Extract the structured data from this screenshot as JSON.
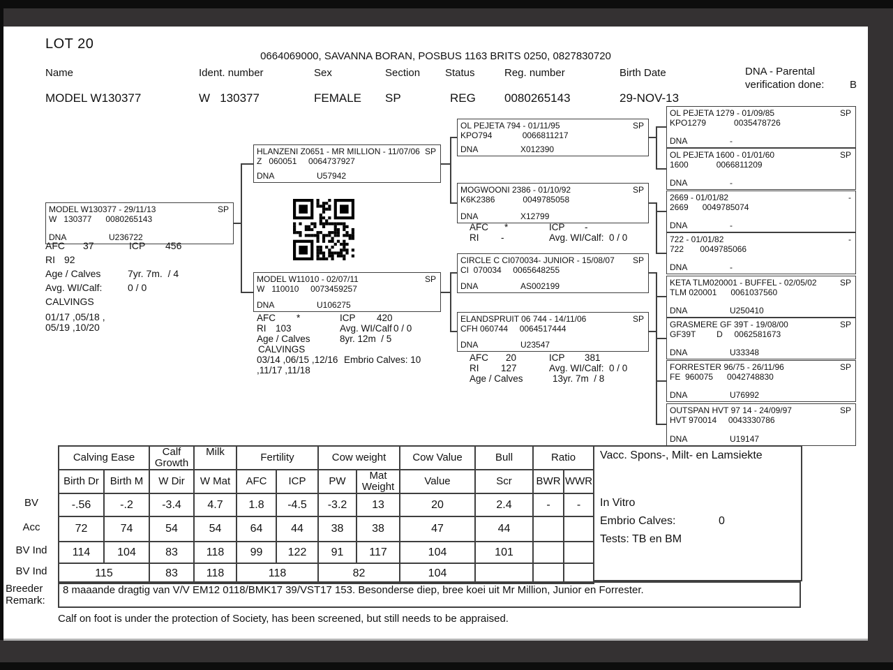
{
  "header": {
    "lot": "LOT 20",
    "contact_line": "0664069000, SAVANNA BORAN, POSBUS 1163 BRITS 0250, 0827830720",
    "fields": [
      {
        "label": "Name",
        "value": "MODEL W130377"
      },
      {
        "label": "Ident. number",
        "value": "W   130377"
      },
      {
        "label": "Sex",
        "value": "FEMALE"
      },
      {
        "label": "Section",
        "value": "SP"
      },
      {
        "label": "Status",
        "value": "REG"
      },
      {
        "label": "Reg. number",
        "value": "0080265143"
      },
      {
        "label": "Birth Date",
        "value": "29-NOV-13"
      }
    ],
    "dna_verification_label1": "DNA - Parental",
    "dna_verification_label2": "verification done:",
    "dna_verification_value": "B"
  },
  "pedigree": {
    "dna_label": "DNA",
    "boxes": [
      {
        "name_line": "MODEL W130377 - 29/11/13",
        "section": "SP",
        "id_line": "W   130377      0080265143",
        "dna_value": "U236722"
      },
      {
        "name_line": "HLANZENI Z0651 - MR MILLION - 11/07/06",
        "section": "SP",
        "id_line": "Z   060051     0064737927",
        "dna_value": "U57942"
      },
      {
        "name_line": "MODEL W11010 - 02/07/11",
        "section": "SP",
        "id_line": "W   110010     0073459257",
        "dna_value": "U106275"
      },
      {
        "name_line": "OL PEJETA 794 - 01/11/95",
        "section": "SP",
        "id_line": "KPO794             0066811217",
        "dna_value": "X012390"
      },
      {
        "name_line": "MOGWOONI 2386 - 01/10/92",
        "section": "SP",
        "id_line": "K6K2386            0049785058",
        "dna_value": "X12799"
      },
      {
        "name_line": "CIRCLE C CI070034- JUNIOR - 15/08/07",
        "section": "SP",
        "id_line": "CI  070034     0065648255",
        "dna_value": "AS002199"
      },
      {
        "name_line": "ELANDSPRUIT 06 744 - 14/11/06",
        "section": "SP",
        "id_line": "CFH 060744     0064517444",
        "dna_value": "U23547"
      },
      {
        "name_line": "OL PEJETA 1279 - 01/09/85",
        "section": "SP",
        "id_line": "KPO1279            0035478726",
        "dna_value": "-"
      },
      {
        "name_line": "OL PEJETA 1600 - 01/01/60",
        "section": "SP",
        "id_line": "1600            0066811209",
        "dna_value": "-"
      },
      {
        "name_line": "2669 - 01/01/82",
        "section": "-",
        "id_line": "2669      0049785074",
        "dna_value": "-"
      },
      {
        "name_line": "722 - 01/01/82",
        "section": "-",
        "id_line": "722       0049785066",
        "dna_value": "-"
      },
      {
        "name_line": "KETA TLM020001 - BUFFEL - 02/05/02",
        "section": "SP",
        "id_line": "TLM 020001      0061037560",
        "dna_value": "U250410"
      },
      {
        "name_line": "GRASMERE GF 39T - 19/08/00",
        "section": "SP",
        "id_line": "GF39T         D     0062581673",
        "dna_value": "U33348"
      },
      {
        "name_line": "FORRESTER 96/75 - 26/11/96",
        "section": "SP",
        "id_line": "FE  960075      0042748830",
        "dna_value": "U76992"
      },
      {
        "name_line": "OUTSPAN HVT 97 14 - 24/09/97",
        "section": "SP",
        "id_line": "HVT 970014     0043330786",
        "dna_value": "U19147"
      }
    ],
    "stat_labels": {
      "afc": "AFC",
      "icp": "ICP",
      "ri": "RI",
      "age_calves": "Age / Calves",
      "avg_wi": "Avg. WI/Calf:",
      "avg_wi_nocolon": "Avg. WI/Calf",
      "calvings": "CALVINGS",
      "star": "*",
      "dash": "-"
    },
    "subject_stats": {
      "afc": "37",
      "icp": "456",
      "ri": "92",
      "age_calves": "7yr. 7m.  / 4",
      "avg_wi": "0 / 0",
      "calvings_line1": "01/17 ,05/18 ,",
      "calvings_line2": "05/19 ,10/20"
    },
    "dam_stats": {
      "afc": "*",
      "icp": "420",
      "ri": "103",
      "avg_wi": "0 / 0",
      "age_calves": "8yr. 12m  / 5",
      "calvings_line1": "03/14 ,06/15 ,12/16",
      "calvings_line2": ",11/17 ,11/18",
      "embrio": "Embrio Calves: 10"
    },
    "pgd_stats": {
      "afc": "*",
      "icp": "-",
      "ri": "-",
      "avg_wi": "0 / 0"
    },
    "mgd_stats": {
      "afc": "20",
      "icp": "381",
      "ri": "127",
      "avg_wi": "0 / 0",
      "age_calves": "13yr. 7m  / 8"
    }
  },
  "table": {
    "row_labels": [
      "BV",
      "Acc",
      "BV Ind",
      "BV Ind"
    ],
    "group_headers": [
      "Calving Ease",
      "Calf Growth",
      "Milk",
      "Fertility",
      "Cow weight",
      "Cow Value",
      "Bull",
      "Ratio"
    ],
    "sub_headers": [
      "Birth Dr",
      "Birth M",
      "W Dir",
      "W Mat",
      "AFC",
      "ICP",
      "PW",
      "Mat Weight",
      "Value",
      "Scr",
      "BWR",
      "WWR"
    ],
    "bv": [
      "-.56",
      "-.2",
      "-3.4",
      "4.7",
      "1.8",
      "-4.5",
      "-3.2",
      "13",
      "20",
      "2.4",
      "-",
      "-"
    ],
    "acc": [
      "72",
      "74",
      "54",
      "54",
      "64",
      "44",
      "38",
      "38",
      "47",
      "44",
      "",
      ""
    ],
    "bv_ind": [
      "114",
      "104",
      "83",
      "118",
      "99",
      "122",
      "91",
      "117",
      "104",
      "101",
      "",
      ""
    ],
    "bv_ind2": [
      "115",
      "83",
      "118",
      "118",
      "82",
      "104",
      "",
      "",
      ""
    ]
  },
  "side_panel": {
    "title": "Vacc. Spons-, Milt- en Lamsiekte",
    "line1": "In Vitro",
    "line2_label": "Embrio Calves:",
    "line2_value": "0",
    "line3": "Tests: TB en BM"
  },
  "remarks": {
    "label_line1": "Breeder",
    "label_line2": "Remark:",
    "text": "8 maaande dragtig van V/V EM12 0118/BMK17 39/VST17 153. Besonderse diep, bree koei uit Mr Million, Junior en Forrester.",
    "footnote": "Calf on foot is under the protection of Society, has been screened, but still needs to be appraised."
  }
}
